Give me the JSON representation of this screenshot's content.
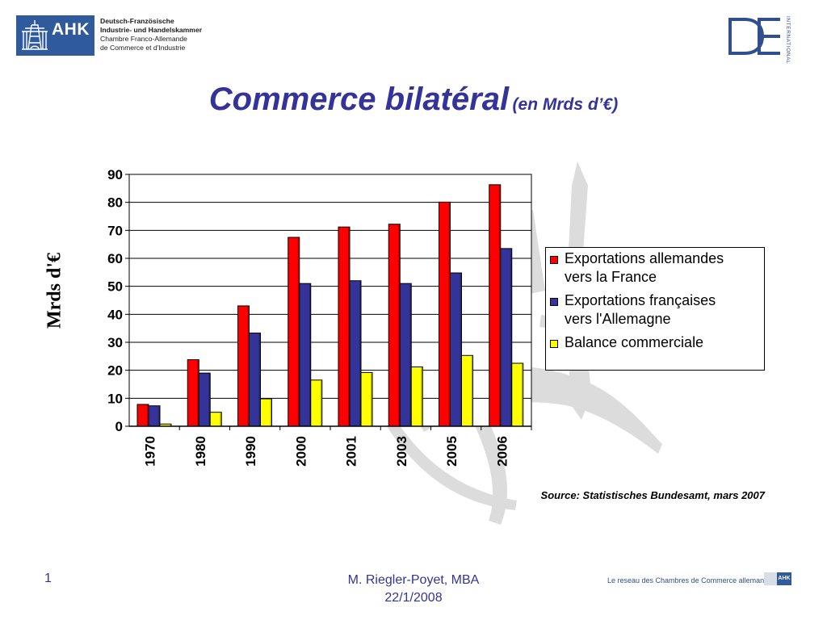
{
  "header": {
    "ahk_mark": "AHK",
    "ahk_lines": [
      "Deutsch-Französische",
      "Industrie- und Handelskammer",
      "Chambre Franco-Allemande",
      "de Commerce et d'Industrie"
    ],
    "de_international": "INTERNATIONAL"
  },
  "title": {
    "main": "Commerce bilatéral",
    "sub": "(en Mrds d’€)"
  },
  "chart_data": {
    "type": "bar",
    "ylabel": "Mrds d'€",
    "ylim": [
      0,
      90
    ],
    "yticks": [
      "0",
      "10",
      "20",
      "30",
      "40",
      "50",
      "60",
      "70",
      "80",
      "90"
    ],
    "categories": [
      "1970",
      "1980",
      "1990",
      "2000",
      "2001",
      "2003",
      "2005",
      "2006"
    ],
    "grid": true,
    "legend_position": "right",
    "series": [
      {
        "name": "Exportations allemandes vers la France",
        "color": "#ff0000",
        "values": [
          7.8,
          23.8,
          43,
          67.5,
          71.2,
          72.2,
          80.1,
          86.3
        ]
      },
      {
        "name": "Exportations françaises vers l'Allemagne",
        "color": "#333399",
        "values": [
          7.3,
          19,
          33.3,
          51,
          52,
          51,
          54.8,
          63.5
        ]
      },
      {
        "name": "Balance commerciale",
        "color": "#ffff00",
        "values": [
          0.8,
          5,
          9.8,
          16.5,
          19.2,
          21.2,
          25.3,
          22.5
        ]
      }
    ]
  },
  "legend": {
    "items": [
      {
        "lines": [
          "Exportations allemandes",
          "vers la France"
        ]
      },
      {
        "lines": [
          "Exportations françaises",
          "vers l'Allemagne"
        ]
      },
      {
        "lines": [
          "Balance commerciale"
        ]
      }
    ]
  },
  "source": "Source: Statistisches Bundesamt, mars 2007",
  "footer": {
    "page_number": "1",
    "author": "M. Riegler-Poyet, MBA",
    "date": "22/1/2008",
    "network": "Le reseau des Chambres de Commerce allemandes",
    "ahk_small": "AHK"
  }
}
